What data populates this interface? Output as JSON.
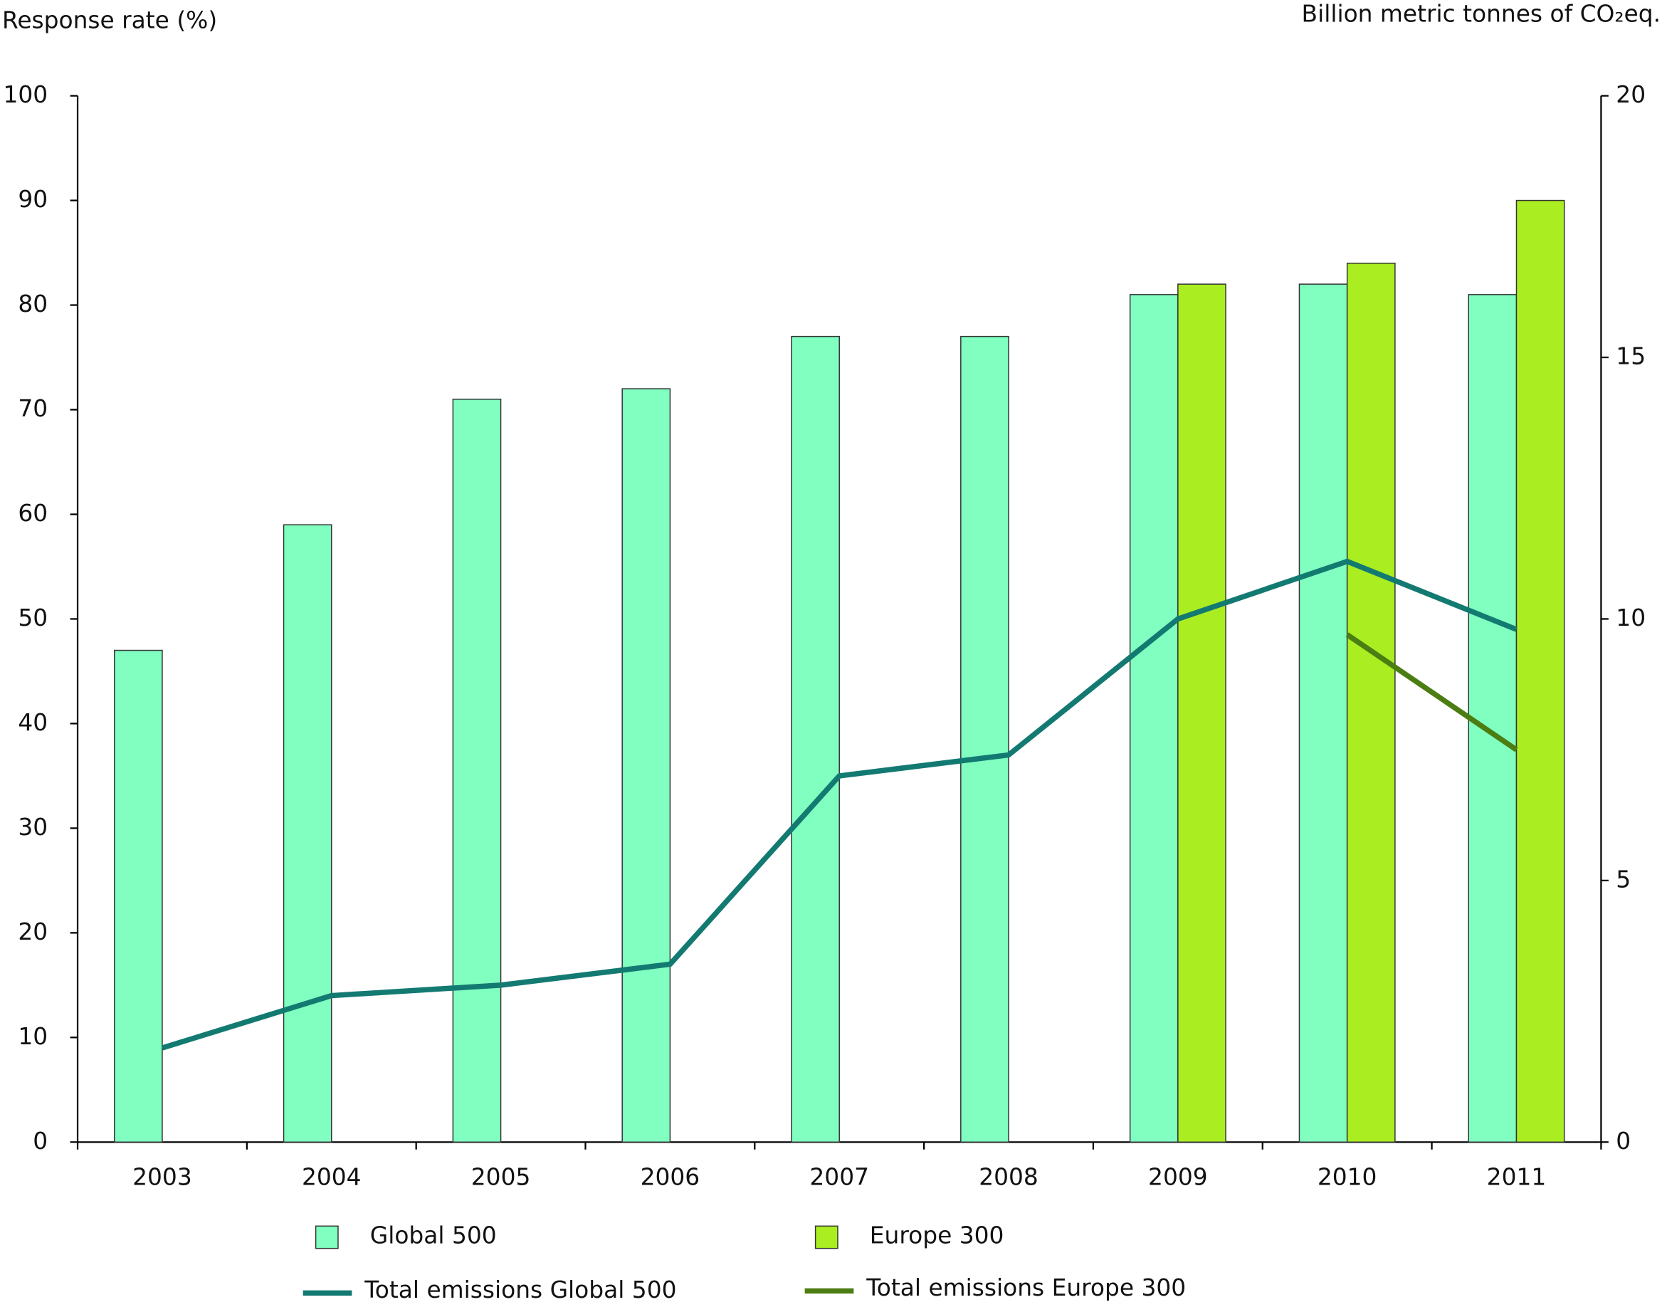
{
  "chart_data": {
    "type": "bar",
    "ylabel": "Response rate (%)",
    "y2label": "Billion metric tonnes of CO₂eq.",
    "categories": [
      "2003",
      "2004",
      "2005",
      "2006",
      "2007",
      "2008",
      "2009",
      "2010",
      "2011"
    ],
    "series": [
      {
        "name": "Global 500",
        "type": "bar",
        "color": "#80ffc0",
        "values": [
          47,
          59,
          71,
          72,
          77,
          77,
          81,
          82,
          81
        ]
      },
      {
        "name": "Europe 300",
        "type": "bar",
        "color": "#aaee22",
        "values": [
          null,
          null,
          null,
          null,
          null,
          null,
          82,
          84,
          90
        ]
      },
      {
        "name": "Total emissions Global 500",
        "type": "line",
        "axis": "y2",
        "color": "#137a72",
        "values": [
          1.8,
          2.8,
          3.0,
          3.4,
          7.0,
          7.4,
          10.0,
          11.1,
          9.8
        ]
      },
      {
        "name": "Total emissions Europe 300",
        "type": "line",
        "axis": "y2",
        "color": "#4b7d12",
        "values": [
          null,
          null,
          null,
          null,
          null,
          null,
          null,
          9.7,
          7.5
        ]
      }
    ],
    "ylim": [
      0,
      100
    ],
    "yticks": [
      0,
      10,
      20,
      30,
      40,
      50,
      60,
      70,
      80,
      90,
      100
    ],
    "y2lim": [
      0,
      20
    ],
    "y2ticks": [
      0,
      5,
      10,
      15,
      20
    ],
    "grid": false
  }
}
